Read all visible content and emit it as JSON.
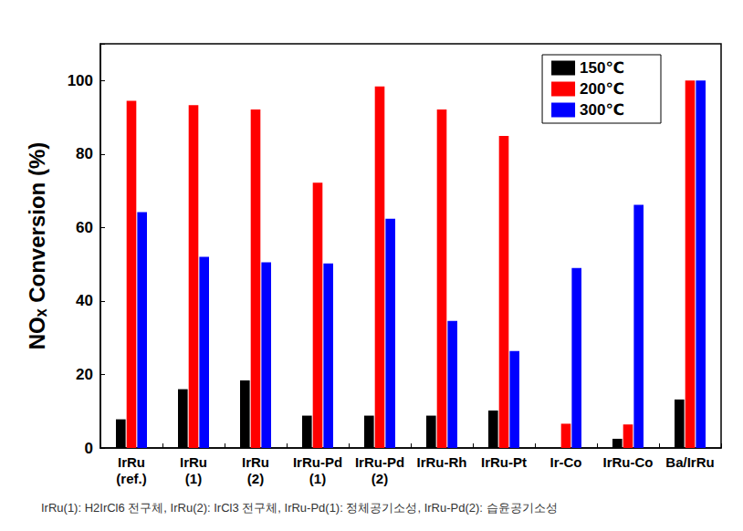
{
  "chart_data": {
    "type": "bar",
    "y_label": "NOₓ Conversion (%)",
    "categories": [
      "IrRu\n(ref.)",
      "IrRu\n(1)",
      "IrRu\n(2)",
      "IrRu-Pd\n(1)",
      "IrRu-Pd\n(2)",
      "IrRu-Rh",
      "IrRu-Pt",
      "Ir-Co",
      "IrRu-Co",
      "Ba/IrRu"
    ],
    "series": [
      {
        "name": "150℃",
        "color": "#000000",
        "values": [
          7.8,
          16,
          18.4,
          8.8,
          8.8,
          8.8,
          10.2,
          0,
          2.5,
          13.2
        ]
      },
      {
        "name": "200℃",
        "color": "#ff0000",
        "values": [
          94.5,
          93.3,
          92.1,
          72.2,
          98.4,
          92.1,
          84.9,
          6.6,
          6.4,
          100
        ]
      },
      {
        "name": "300℃",
        "color": "#0000ff",
        "values": [
          64.2,
          52,
          50.5,
          50.2,
          62.4,
          34.6,
          26.4,
          49,
          66.2,
          100
        ]
      }
    ],
    "ylim": [
      0,
      110
    ],
    "yticks": [
      0,
      20,
      40,
      60,
      80,
      100
    ],
    "grid": false,
    "legend": "upper right",
    "annotations": [
      "IrRu(1): H2IrCl6 전구체, IrRu(2): IrCl3 전구체, IrRu-Pd(1): 정체공기소성, IrRu-Pd(2): 습윤공기소성"
    ]
  }
}
